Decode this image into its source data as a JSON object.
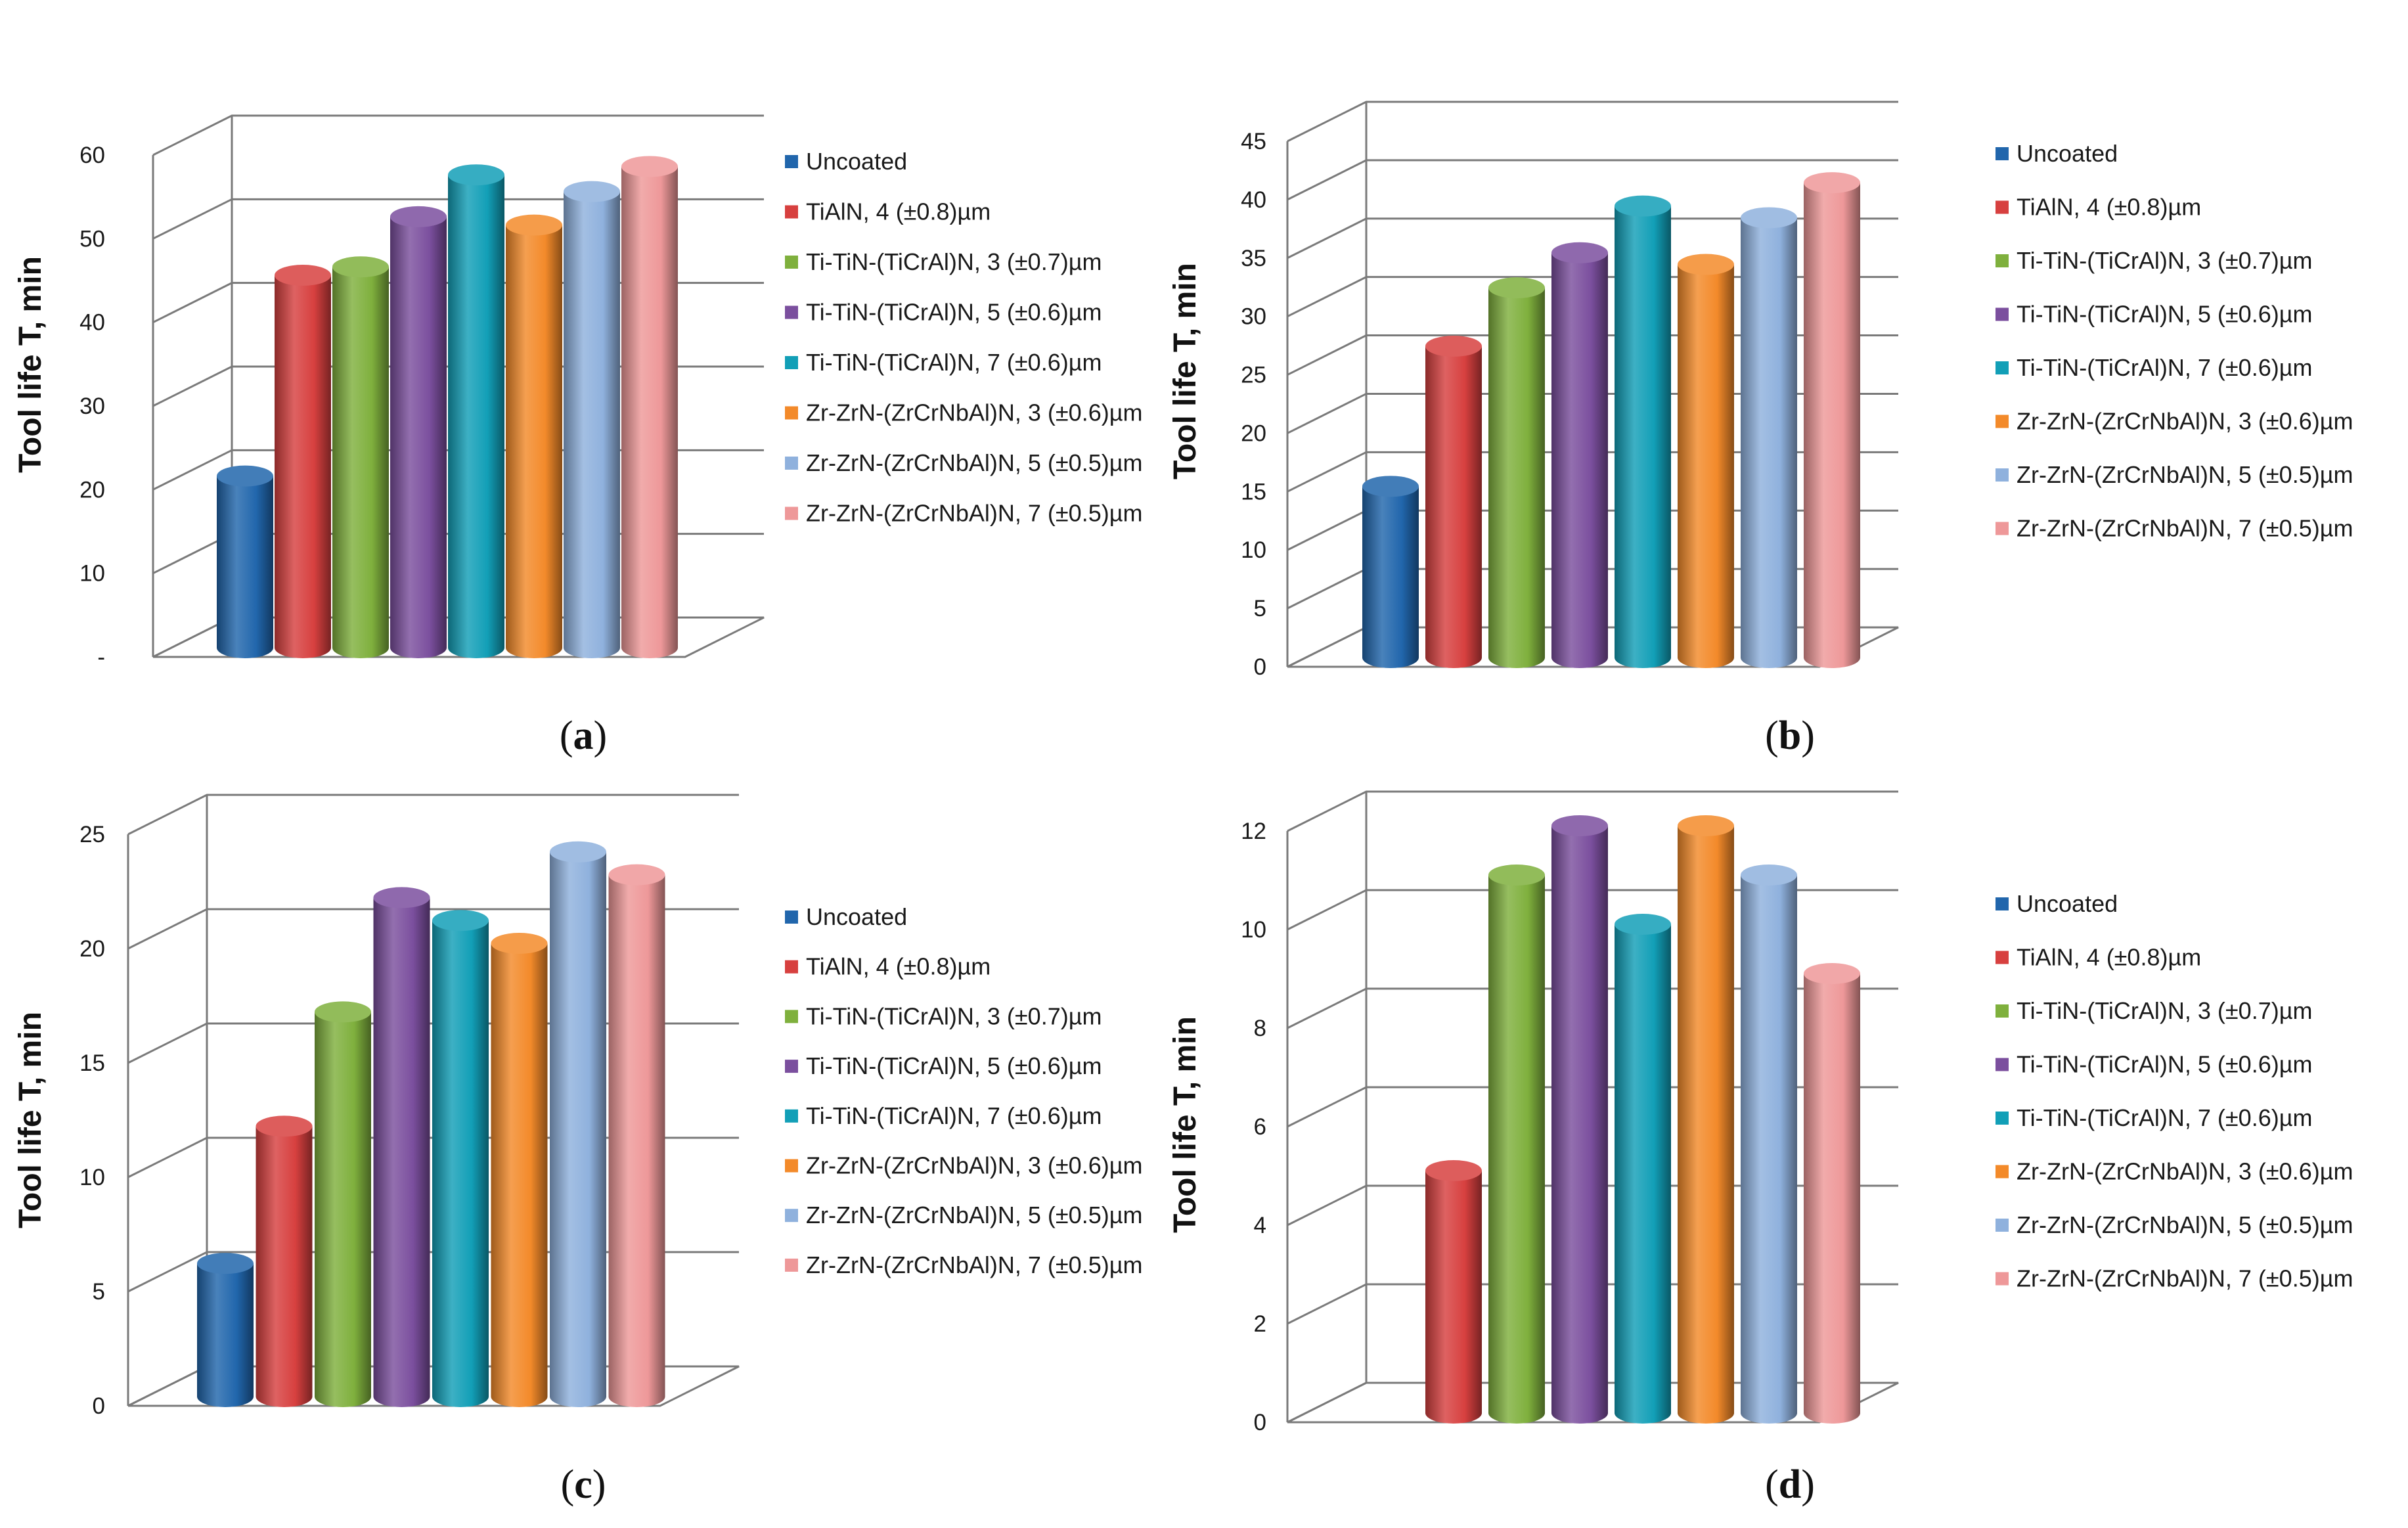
{
  "chart_data": [
    {
      "type": "bar",
      "panel_label": "a",
      "title": "",
      "xlabel": "",
      "ylabel": "Tool life T, min",
      "ylim": [
        0,
        60
      ],
      "y_ticks": [
        "-",
        "10",
        "20",
        "30",
        "40",
        "50",
        "60"
      ],
      "categories": [
        "Uncoated",
        "TiAlN, 4 (±0.8)µm",
        "Ti-TiN-(TiCrAl)N, 3 (±0.7)µm",
        "Ti-TiN-(TiCrAl)N, 5 (±0.6)µm",
        "Ti-TiN-(TiCrAl)N, 7 (±0.6)µm",
        "Zr-ZrN-(ZrCrNbAl)N, 3 (±0.6)µm",
        "Zr-ZrN-(ZrCrNbAl)N, 5 (±0.5)µm",
        "Zr-ZrN-(ZrCrNbAl)N, 7 (±0.5)µm"
      ],
      "values": [
        21,
        45,
        46,
        52,
        57,
        51,
        55,
        58
      ],
      "legend_position": "right"
    },
    {
      "type": "bar",
      "panel_label": "b",
      "title": "",
      "xlabel": "",
      "ylabel": "Tool life T, min",
      "ylim": [
        0,
        45
      ],
      "y_ticks": [
        "0",
        "5",
        "10",
        "15",
        "20",
        "25",
        "30",
        "35",
        "40",
        "45"
      ],
      "categories": [
        "Uncoated",
        "TiAlN, 4 (±0.8)µm",
        "Ti-TiN-(TiCrAl)N, 3 (±0.7)µm",
        "Ti-TiN-(TiCrAl)N, 5 (±0.6)µm",
        "Ti-TiN-(TiCrAl)N, 7 (±0.6)µm",
        "Zr-ZrN-(ZrCrNbAl)N, 3 (±0.6)µm",
        "Zr-ZrN-(ZrCrNbAl)N, 5 (±0.5)µm",
        "Zr-ZrN-(ZrCrNbAl)N, 7 (±0.5)µm"
      ],
      "values": [
        15,
        27,
        32,
        35,
        39,
        34,
        38,
        41
      ],
      "legend_position": "right"
    },
    {
      "type": "bar",
      "panel_label": "c",
      "title": "",
      "xlabel": "",
      "ylabel": "Tool life T, min",
      "ylim": [
        0,
        25
      ],
      "y_ticks": [
        "0",
        "5",
        "10",
        "15",
        "20",
        "25"
      ],
      "categories": [
        "Uncoated",
        "TiAlN, 4 (±0.8)µm",
        "Ti-TiN-(TiCrAl)N, 3 (±0.7)µm",
        "Ti-TiN-(TiCrAl)N, 5 (±0.6)µm",
        "Ti-TiN-(TiCrAl)N, 7 (±0.6)µm",
        "Zr-ZrN-(ZrCrNbAl)N, 3 (±0.6)µm",
        "Zr-ZrN-(ZrCrNbAl)N, 5 (±0.5)µm",
        "Zr-ZrN-(ZrCrNbAl)N, 7 (±0.5)µm"
      ],
      "values": [
        6,
        12,
        17,
        22,
        21,
        20,
        24,
        23
      ],
      "legend_position": "right"
    },
    {
      "type": "bar",
      "panel_label": "d",
      "title": "",
      "xlabel": "",
      "ylabel": "Tool life T, min",
      "ylim": [
        0,
        12
      ],
      "y_ticks": [
        "0",
        "2",
        "4",
        "6",
        "8",
        "10",
        "12"
      ],
      "categories": [
        "Uncoated",
        "TiAlN, 4 (±0.8)µm",
        "Ti-TiN-(TiCrAl)N, 3 (±0.7)µm",
        "Ti-TiN-(TiCrAl)N, 5 (±0.6)µm",
        "Ti-TiN-(TiCrAl)N, 7 (±0.6)µm",
        "Zr-ZrN-(ZrCrNbAl)N, 3 (±0.6)µm",
        "Zr-ZrN-(ZrCrNbAl)N, 5 (±0.5)µm",
        "Zr-ZrN-(ZrCrNbAl)N, 7 (±0.5)µm"
      ],
      "values": [
        0,
        5,
        11,
        12,
        10,
        12,
        11,
        9
      ],
      "legend_position": "right"
    }
  ],
  "series_colors": [
    "#2166ac",
    "#d7403f",
    "#7fb03d",
    "#7b4f9e",
    "#129fb7",
    "#f38a2a",
    "#8fb1dd",
    "#ee9899"
  ]
}
